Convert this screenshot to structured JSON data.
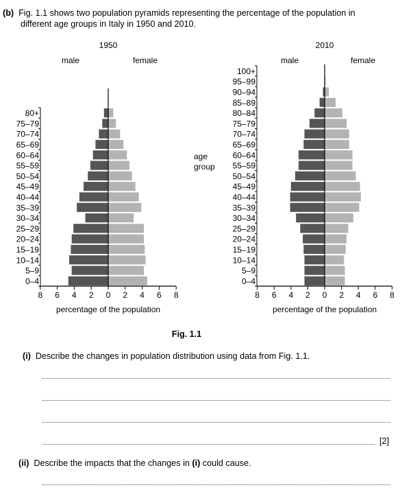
{
  "question": {
    "label": "(b)",
    "text_line1": "Fig. 1.1 shows two population pyramids representing the percentage of the population in",
    "text_line2": "different age groups in Italy in 1950 and 2010."
  },
  "figure_caption": "Fig. 1.1",
  "shared_labels": {
    "age_axis_line1": "age",
    "age_axis_line2": "group"
  },
  "chart_data": [
    {
      "type": "bar",
      "title": "1950",
      "left_label": "male",
      "right_label": "female",
      "xlabel": "percentage of the population",
      "xticks": [
        "8",
        "6",
        "4",
        "2",
        "0",
        "2",
        "4",
        "6",
        "8"
      ],
      "xlim": [
        -8,
        8
      ],
      "categories": [
        "0–4",
        "5–9",
        "10–14",
        "15–19",
        "20–24",
        "25–29",
        "30–34",
        "35–39",
        "40–44",
        "45–49",
        "50–54",
        "55–59",
        "60–64",
        "65–69",
        "70–74",
        "75–79",
        "80+"
      ],
      "series": [
        {
          "name": "male",
          "color": "#555555",
          "values": [
            4.7,
            4.3,
            4.6,
            4.4,
            4.3,
            4.1,
            2.7,
            3.7,
            3.4,
            2.9,
            2.4,
            2.1,
            1.8,
            1.5,
            1.1,
            0.7,
            0.5
          ]
        },
        {
          "name": "female",
          "color": "#b3b3b3",
          "values": [
            4.6,
            4.2,
            4.4,
            4.3,
            4.2,
            4.2,
            3.0,
            3.9,
            3.6,
            3.2,
            2.8,
            2.5,
            2.2,
            1.8,
            1.4,
            0.9,
            0.6
          ]
        }
      ]
    },
    {
      "type": "bar",
      "title": "2010",
      "left_label": "male",
      "right_label": "female",
      "xlabel": "percentage of the population",
      "xticks": [
        "8",
        "6",
        "4",
        "2",
        "0",
        "2",
        "4",
        "6",
        "8"
      ],
      "xlim": [
        -8,
        8
      ],
      "categories": [
        "0–4",
        "5–9",
        "10–14",
        "15–19",
        "20–24",
        "25–29",
        "30–34",
        "35–39",
        "40–44",
        "45–49",
        "50–54",
        "55–59",
        "60–64",
        "65–69",
        "70–74",
        "75–79",
        "80–84",
        "85–89",
        "90–94",
        "95–99",
        "100+"
      ],
      "series": [
        {
          "name": "male",
          "color": "#555555",
          "values": [
            2.4,
            2.4,
            2.4,
            2.5,
            2.6,
            2.9,
            3.4,
            4.1,
            4.1,
            4.0,
            3.5,
            3.1,
            3.1,
            2.5,
            2.4,
            1.8,
            1.2,
            0.6,
            0.2,
            0.0,
            0.0
          ]
        },
        {
          "name": "female",
          "color": "#b3b3b3",
          "values": [
            2.4,
            2.4,
            2.3,
            2.5,
            2.6,
            2.8,
            3.4,
            4.1,
            4.3,
            4.2,
            3.7,
            3.3,
            3.3,
            2.9,
            2.9,
            2.6,
            2.1,
            1.3,
            0.5,
            0.1,
            0.0
          ]
        }
      ]
    }
  ],
  "part_i": {
    "label": "(i)",
    "text": "Describe the changes in population distribution using data from Fig. 1.1.",
    "marks": "[2]"
  },
  "part_ii": {
    "label": "(ii)",
    "text": "Describe the impacts that the changes in ",
    "bold_ref": "(i)",
    "text_end": " could cause."
  }
}
